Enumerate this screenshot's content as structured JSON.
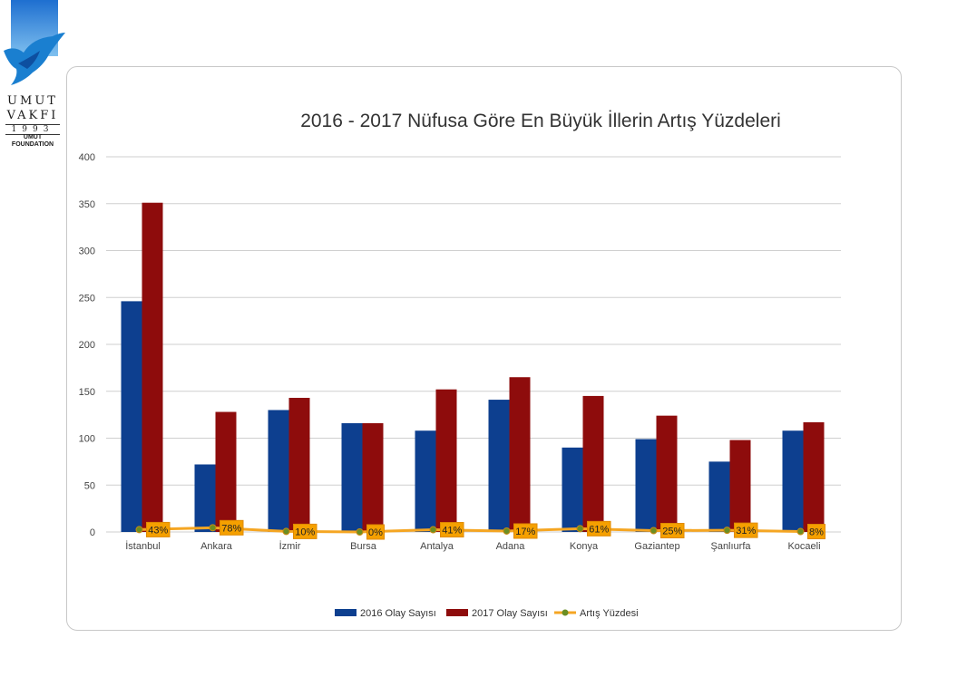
{
  "logo": {
    "line1": "UMUT",
    "line2": "VAKFI",
    "year": "1993",
    "line3": "UMUT",
    "line4": "FOUNDATION"
  },
  "chart_data": {
    "type": "bar",
    "title": "2016 - 2017 Nüfusa Göre En Büyük İllerin Artış Yüzdeleri",
    "categories": [
      "İstanbul",
      "Ankara",
      "İzmir",
      "Bursa",
      "Antalya",
      "Adana",
      "Konya",
      "Gaziantep",
      "Şanlıurfa",
      "Kocaeli"
    ],
    "series": [
      {
        "name": "2016 Olay Sayısı",
        "type": "bar",
        "color": "#0d3f8f",
        "values": [
          246,
          72,
          130,
          116,
          108,
          141,
          90,
          99,
          75,
          108
        ]
      },
      {
        "name": "2017 Olay Sayısı",
        "type": "bar",
        "color": "#8e0c0c",
        "values": [
          351,
          128,
          143,
          116,
          152,
          165,
          145,
          124,
          98,
          117
        ]
      },
      {
        "name": "Artış Yüzdesi",
        "type": "line",
        "color": "#f5a623",
        "marker_color": "#6b8e23",
        "values": [
          43,
          78,
          10,
          0,
          41,
          17,
          61,
          25,
          31,
          8
        ],
        "labels": [
          "43%",
          "78%",
          "10%",
          "0%",
          "41%",
          "17%",
          "61%",
          "25%",
          "31%",
          "8%"
        ]
      }
    ],
    "ylim": [
      0,
      400
    ],
    "yticks": [
      0,
      50,
      100,
      150,
      200,
      250,
      300,
      350,
      400
    ],
    "xlabel": "",
    "ylabel": "",
    "grid": true,
    "legend": "bottom"
  }
}
